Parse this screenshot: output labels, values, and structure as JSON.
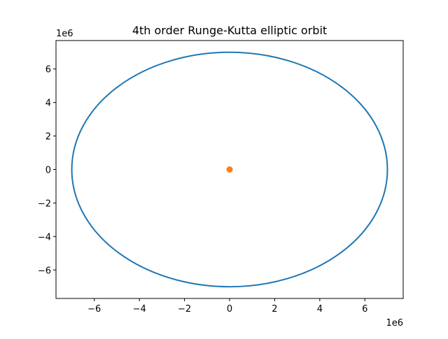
{
  "chart_data": {
    "type": "scatter",
    "title": "4th order Runge-Kutta elliptic orbit",
    "xlabel": "",
    "ylabel": "",
    "x_offset_label": "1e6",
    "y_offset_label": "1e6",
    "xlim": [
      -7.7,
      7.7
    ],
    "ylim": [
      -7.7,
      7.7
    ],
    "x_ticks": [
      -6,
      -4,
      -2,
      0,
      2,
      4,
      6
    ],
    "y_ticks": [
      -6,
      -4,
      -2,
      0,
      2,
      4,
      6
    ],
    "x_tick_labels": [
      "−6",
      "−4",
      "−2",
      "0",
      "2",
      "4",
      "6"
    ],
    "y_tick_labels": [
      "−6",
      "−4",
      "−2",
      "0",
      "2",
      "4",
      "6"
    ],
    "grid": false,
    "series": [
      {
        "kind": "line",
        "shape": "ellipse",
        "center": [
          0,
          0
        ],
        "semi_axes": [
          7.0,
          7.0
        ],
        "color": "#1f77b4"
      },
      {
        "kind": "point",
        "x": 0,
        "y": 0,
        "color": "#ff7f0e"
      }
    ]
  }
}
